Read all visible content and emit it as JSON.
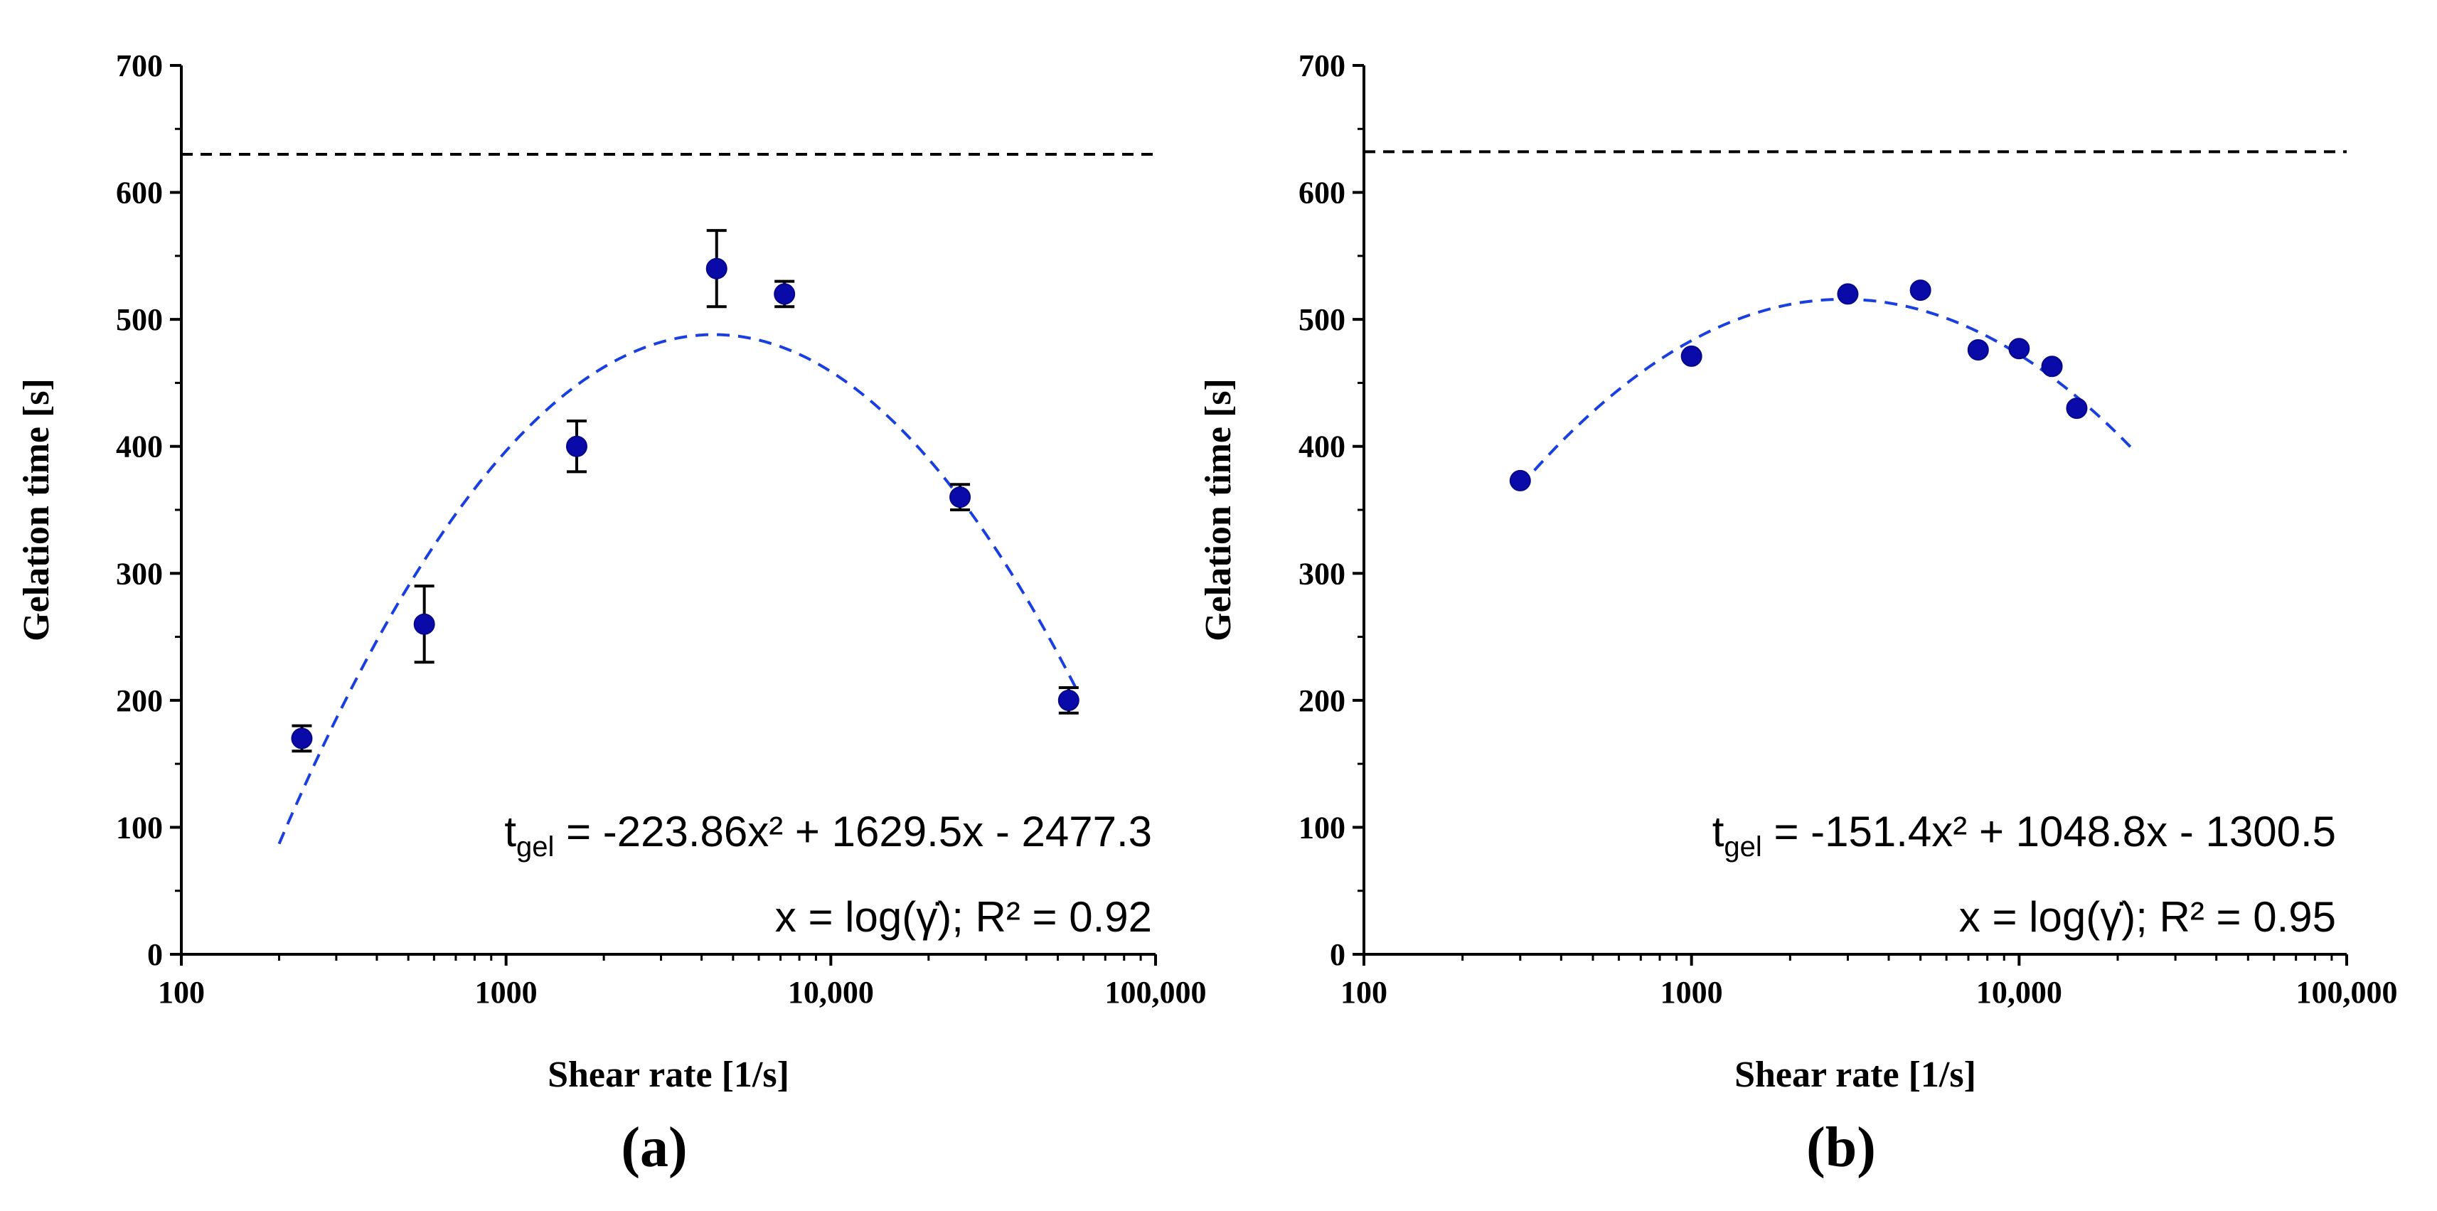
{
  "chart_data": [
    {
      "panel_label": "(a)",
      "type": "scatter",
      "xscale": "log",
      "xlim": [
        100,
        100000
      ],
      "ylim": [
        0,
        700
      ],
      "xticks": [
        100,
        1000,
        10000,
        100000
      ],
      "xtick_labels": [
        "100",
        "1000",
        "10,000",
        "100,000"
      ],
      "yticks": [
        0,
        100,
        200,
        300,
        400,
        500,
        600,
        700
      ],
      "ytick_labels": [
        "0",
        "100",
        "200",
        "300",
        "400",
        "500",
        "600",
        "700"
      ],
      "xlabel": "Shear rate [1/s]",
      "ylabel": "Gelation time [s]",
      "reference_line_y": 630,
      "points": [
        {
          "x": 235,
          "y": 170,
          "err": 10
        },
        {
          "x": 560,
          "y": 260,
          "err": 30
        },
        {
          "x": 1650,
          "y": 400,
          "err": 20
        },
        {
          "x": 4450,
          "y": 540,
          "err": 30
        },
        {
          "x": 7200,
          "y": 520,
          "err": 10
        },
        {
          "x": 25000,
          "y": 360,
          "err": 10
        },
        {
          "x": 54000,
          "y": 200,
          "err": 10
        }
      ],
      "fit": {
        "a": -223.86,
        "b": 1629.5,
        "c": -2477.3,
        "x_from": 200,
        "x_to": 58000
      },
      "equation_main": "t",
      "equation_sub": "gel",
      "equation_rest": " = -223.86x² + 1629.5x - 2477.3",
      "equation_line2": "x = log(γ̇); R² = 0.92"
    },
    {
      "panel_label": "(b)",
      "type": "scatter",
      "xscale": "log",
      "xlim": [
        100,
        100000
      ],
      "ylim": [
        0,
        700
      ],
      "xticks": [
        100,
        1000,
        10000,
        100000
      ],
      "xtick_labels": [
        "100",
        "1000",
        "10,000",
        "100,000"
      ],
      "yticks": [
        0,
        100,
        200,
        300,
        400,
        500,
        600,
        700
      ],
      "ytick_labels": [
        "0",
        "100",
        "200",
        "300",
        "400",
        "500",
        "600",
        "700"
      ],
      "xlabel": "Shear rate [1/s]",
      "ylabel": "Gelation time [s]",
      "reference_line_y": 632,
      "points": [
        {
          "x": 300,
          "y": 373,
          "err": 0
        },
        {
          "x": 1000,
          "y": 471,
          "err": 0
        },
        {
          "x": 3000,
          "y": 520,
          "err": 0
        },
        {
          "x": 5000,
          "y": 523,
          "err": 0
        },
        {
          "x": 7500,
          "y": 476,
          "err": 0
        },
        {
          "x": 10000,
          "y": 477,
          "err": 0
        },
        {
          "x": 12600,
          "y": 463,
          "err": 0
        },
        {
          "x": 15000,
          "y": 430,
          "err": 0
        }
      ],
      "fit": {
        "a": -151.4,
        "b": 1048.8,
        "c": -1300.5,
        "x_from": 300,
        "x_to": 22000
      },
      "equation_main": "t",
      "equation_sub": "gel",
      "equation_rest": " = -151.4x² + 1048.8x - 1300.5",
      "equation_line2": "x = log(γ̇); R² = 0.95"
    }
  ],
  "colors": {
    "marker": "#0a0aa8",
    "fit_line": "#1a3fe0",
    "reference_line": "#000000",
    "axis": "#000000"
  }
}
